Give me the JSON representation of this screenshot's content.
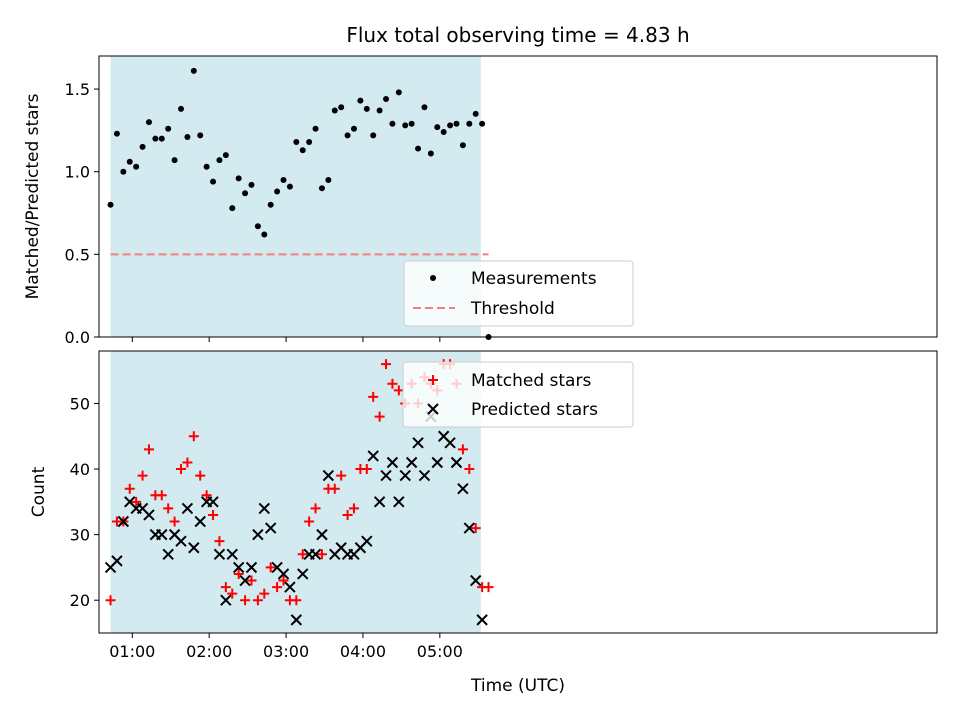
{
  "chart_data": [
    {
      "type": "scatter",
      "title": "Flux total observing time = 4.83 h",
      "xlabel": "",
      "ylabel": "Matched/Predicted stars",
      "ylim": [
        0,
        1.7
      ],
      "yticks": [
        "0.0",
        "0.5",
        "1.0",
        "1.5"
      ],
      "observing_window": [
        "00:43",
        "05:32"
      ],
      "threshold": 0.5,
      "legend_position": "lower center",
      "series": [
        {
          "name": "Measurements",
          "color": "#000000",
          "marker": "dot",
          "points": [
            [
              "00:43",
              0.8
            ],
            [
              "00:48",
              1.23
            ],
            [
              "00:53",
              1.0
            ],
            [
              "00:58",
              1.06
            ],
            [
              "01:03",
              1.03
            ],
            [
              "01:08",
              1.15
            ],
            [
              "01:13",
              1.3
            ],
            [
              "01:18",
              1.2
            ],
            [
              "01:23",
              1.2
            ],
            [
              "01:28",
              1.26
            ],
            [
              "01:33",
              1.07
            ],
            [
              "01:38",
              1.38
            ],
            [
              "01:43",
              1.21
            ],
            [
              "01:48",
              1.61
            ],
            [
              "01:53",
              1.22
            ],
            [
              "01:58",
              1.03
            ],
            [
              "02:03",
              0.94
            ],
            [
              "02:08",
              1.07
            ],
            [
              "02:13",
              1.1
            ],
            [
              "02:18",
              0.78
            ],
            [
              "02:23",
              0.96
            ],
            [
              "02:28",
              0.87
            ],
            [
              "02:33",
              0.92
            ],
            [
              "02:38",
              0.67
            ],
            [
              "02:43",
              0.62
            ],
            [
              "02:48",
              0.8
            ],
            [
              "02:53",
              0.88
            ],
            [
              "02:58",
              0.95
            ],
            [
              "03:03",
              0.91
            ],
            [
              "03:08",
              1.18
            ],
            [
              "03:13",
              1.13
            ],
            [
              "03:18",
              1.18
            ],
            [
              "03:23",
              1.26
            ],
            [
              "03:28",
              0.9
            ],
            [
              "03:33",
              0.95
            ],
            [
              "03:38",
              1.37
            ],
            [
              "03:43",
              1.39
            ],
            [
              "03:48",
              1.22
            ],
            [
              "03:53",
              1.26
            ],
            [
              "03:58",
              1.43
            ],
            [
              "04:03",
              1.38
            ],
            [
              "04:08",
              1.22
            ],
            [
              "04:13",
              1.37
            ],
            [
              "04:18",
              1.44
            ],
            [
              "04:23",
              1.29
            ],
            [
              "04:28",
              1.48
            ],
            [
              "04:33",
              1.28
            ],
            [
              "04:38",
              1.29
            ],
            [
              "04:43",
              1.14
            ],
            [
              "04:48",
              1.39
            ],
            [
              "04:53",
              1.11
            ],
            [
              "04:58",
              1.27
            ],
            [
              "05:03",
              1.24
            ],
            [
              "05:08",
              1.28
            ],
            [
              "05:13",
              1.29
            ],
            [
              "05:18",
              1.16
            ],
            [
              "05:23",
              1.29
            ],
            [
              "05:28",
              1.35
            ],
            [
              "05:33",
              1.29
            ],
            [
              "05:38",
              0.0
            ]
          ]
        },
        {
          "name": "Threshold",
          "color": "#f08080",
          "style": "dashed",
          "points": [
            [
              "00:43",
              0.5
            ],
            [
              "05:38",
              0.5
            ]
          ]
        }
      ]
    },
    {
      "type": "scatter",
      "title": "",
      "xlabel": "Time (UTC)",
      "ylabel": "Count",
      "ylim": [
        15,
        58
      ],
      "yticks": [
        "20",
        "30",
        "40",
        "50"
      ],
      "xticks": [
        "01:00",
        "02:00",
        "03:00",
        "04:00",
        "05:00"
      ],
      "legend_position": "top center",
      "series": [
        {
          "name": "Matched stars",
          "color": "#ff0000",
          "marker": "plus",
          "points": [
            [
              "00:43",
              20
            ],
            [
              "00:48",
              32
            ],
            [
              "00:53",
              32
            ],
            [
              "00:58",
              37
            ],
            [
              "01:03",
              35
            ],
            [
              "01:08",
              39
            ],
            [
              "01:13",
              43
            ],
            [
              "01:18",
              36
            ],
            [
              "01:23",
              36
            ],
            [
              "01:28",
              34
            ],
            [
              "01:33",
              32
            ],
            [
              "01:38",
              40
            ],
            [
              "01:43",
              41
            ],
            [
              "01:48",
              45
            ],
            [
              "01:53",
              39
            ],
            [
              "01:58",
              36
            ],
            [
              "02:03",
              33
            ],
            [
              "02:08",
              29
            ],
            [
              "02:13",
              22
            ],
            [
              "02:18",
              21
            ],
            [
              "02:23",
              24
            ],
            [
              "02:28",
              20
            ],
            [
              "02:33",
              23
            ],
            [
              "02:38",
              20
            ],
            [
              "02:43",
              21
            ],
            [
              "02:48",
              25
            ],
            [
              "02:53",
              22
            ],
            [
              "02:58",
              23
            ],
            [
              "03:03",
              20
            ],
            [
              "03:08",
              20
            ],
            [
              "03:13",
              27
            ],
            [
              "03:18",
              32
            ],
            [
              "03:23",
              34
            ],
            [
              "03:28",
              27
            ],
            [
              "03:33",
              37
            ],
            [
              "03:38",
              37
            ],
            [
              "03:43",
              39
            ],
            [
              "03:48",
              33
            ],
            [
              "03:53",
              34
            ],
            [
              "03:58",
              40
            ],
            [
              "04:03",
              40
            ],
            [
              "04:08",
              51
            ],
            [
              "04:13",
              48
            ],
            [
              "04:18",
              56
            ],
            [
              "04:23",
              53
            ],
            [
              "04:28",
              52
            ],
            [
              "04:33",
              50
            ],
            [
              "04:38",
              53
            ],
            [
              "04:43",
              50
            ],
            [
              "04:48",
              54
            ],
            [
              "04:53",
              53
            ],
            [
              "04:58",
              52
            ],
            [
              "05:03",
              56
            ],
            [
              "05:08",
              56
            ],
            [
              "05:13",
              53
            ],
            [
              "05:18",
              43
            ],
            [
              "05:23",
              40
            ],
            [
              "05:28",
              31
            ],
            [
              "05:33",
              22
            ],
            [
              "05:38",
              22
            ]
          ]
        },
        {
          "name": "Predicted stars",
          "color": "#000000",
          "marker": "x",
          "points": [
            [
              "00:43",
              25
            ],
            [
              "00:48",
              26
            ],
            [
              "00:53",
              32
            ],
            [
              "00:58",
              35
            ],
            [
              "01:03",
              34
            ],
            [
              "01:08",
              34
            ],
            [
              "01:13",
              33
            ],
            [
              "01:18",
              30
            ],
            [
              "01:23",
              30
            ],
            [
              "01:28",
              27
            ],
            [
              "01:33",
              30
            ],
            [
              "01:38",
              29
            ],
            [
              "01:43",
              34
            ],
            [
              "01:48",
              28
            ],
            [
              "01:53",
              32
            ],
            [
              "01:58",
              35
            ],
            [
              "02:03",
              35
            ],
            [
              "02:08",
              27
            ],
            [
              "02:13",
              20
            ],
            [
              "02:18",
              27
            ],
            [
              "02:23",
              25
            ],
            [
              "02:28",
              23
            ],
            [
              "02:33",
              25
            ],
            [
              "02:38",
              30
            ],
            [
              "02:43",
              34
            ],
            [
              "02:48",
              31
            ],
            [
              "02:53",
              25
            ],
            [
              "02:58",
              24
            ],
            [
              "03:03",
              22
            ],
            [
              "03:08",
              17
            ],
            [
              "03:13",
              24
            ],
            [
              "03:18",
              27
            ],
            [
              "03:23",
              27
            ],
            [
              "03:28",
              30
            ],
            [
              "03:33",
              39
            ],
            [
              "03:38",
              27
            ],
            [
              "03:43",
              28
            ],
            [
              "03:48",
              27
            ],
            [
              "03:53",
              27
            ],
            [
              "03:58",
              28
            ],
            [
              "04:03",
              29
            ],
            [
              "04:08",
              42
            ],
            [
              "04:13",
              35
            ],
            [
              "04:18",
              39
            ],
            [
              "04:23",
              41
            ],
            [
              "04:28",
              35
            ],
            [
              "04:33",
              39
            ],
            [
              "04:38",
              41
            ],
            [
              "04:43",
              44
            ],
            [
              "04:48",
              39
            ],
            [
              "04:53",
              48
            ],
            [
              "04:58",
              41
            ],
            [
              "05:03",
              45
            ],
            [
              "05:08",
              44
            ],
            [
              "05:13",
              41
            ],
            [
              "05:18",
              37
            ],
            [
              "05:23",
              31
            ],
            [
              "05:28",
              23
            ],
            [
              "05:33",
              17
            ]
          ]
        }
      ]
    }
  ],
  "colors": {
    "window_fill": "#d3eaf0",
    "matched": "#ff0000",
    "predicted": "#000000",
    "threshold": "#f08080"
  }
}
